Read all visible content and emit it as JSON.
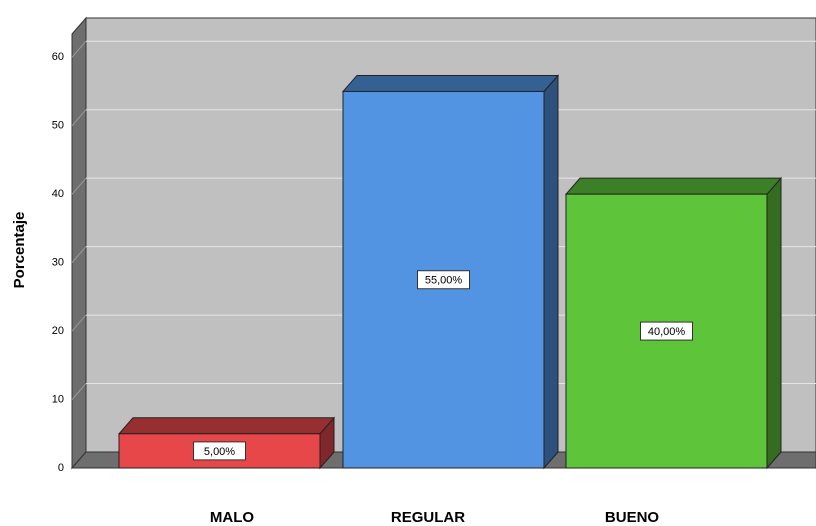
{
  "chart_data": {
    "type": "bar",
    "ylabel": "Porcentaje",
    "categories": [
      "MALO",
      "REGULAR",
      "BUENO"
    ],
    "values": [
      5,
      55,
      40
    ],
    "value_labels": [
      "5,00%",
      "55,00%",
      "40,00%"
    ],
    "colors": [
      "#e8474a",
      "#5294e2",
      "#5ec43a"
    ],
    "ylim": [
      0,
      65
    ],
    "yticks": [
      0,
      10,
      20,
      30,
      40,
      50,
      60
    ],
    "grid": true
  }
}
